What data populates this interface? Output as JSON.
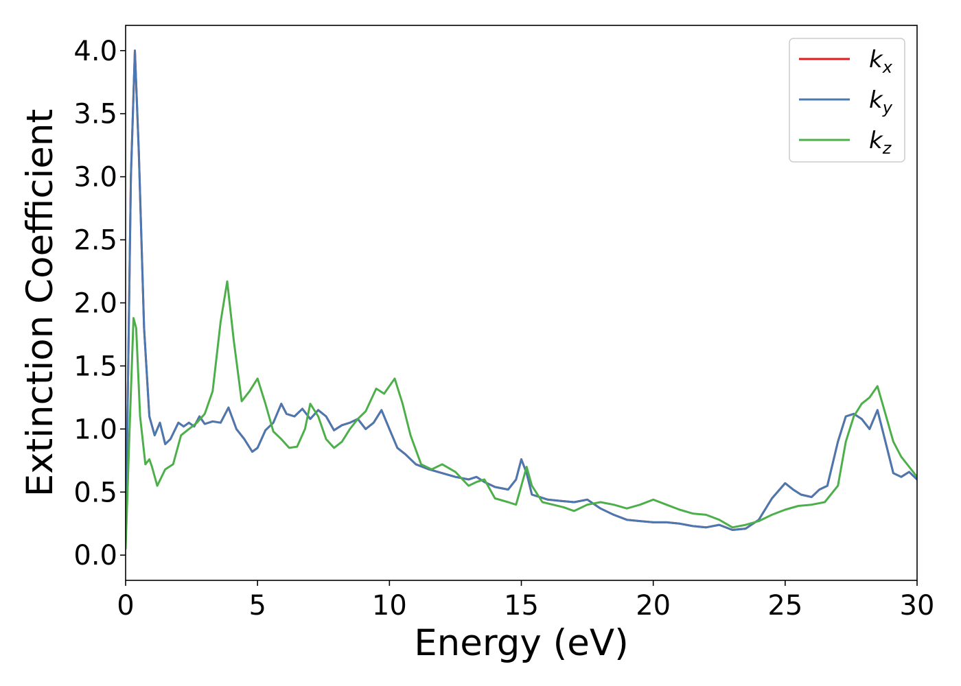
{
  "chart_data": {
    "type": "line",
    "title": "",
    "xlabel": "Energy (eV)",
    "ylabel": "Extinction Coefficient",
    "xlim": [
      0,
      30
    ],
    "ylim": [
      -0.2,
      4.2
    ],
    "xticks": [
      0,
      5,
      10,
      15,
      20,
      25,
      30
    ],
    "xtick_labels": [
      "0",
      "5",
      "10",
      "15",
      "20",
      "25",
      "30"
    ],
    "yticks": [
      0.0,
      0.5,
      1.0,
      1.5,
      2.0,
      2.5,
      3.0,
      3.5,
      4.0
    ],
    "ytick_labels": [
      "0.0",
      "0.5",
      "1.0",
      "1.5",
      "2.0",
      "2.5",
      "3.0",
      "3.5",
      "4.0"
    ],
    "grid": false,
    "legend_position": "top-right",
    "series": [
      {
        "name": "k",
        "subscript": "x",
        "color": "#e41a1c",
        "x": [
          0.0,
          0.1,
          0.2,
          0.35,
          0.5,
          0.7,
          0.9,
          1.1,
          1.3,
          1.5,
          1.7,
          2.0,
          2.2,
          2.4,
          2.6,
          2.8,
          3.0,
          3.3,
          3.6,
          3.9,
          4.2,
          4.5,
          4.8,
          5.0,
          5.3,
          5.6,
          5.9,
          6.1,
          6.4,
          6.7,
          7.0,
          7.3,
          7.6,
          7.9,
          8.2,
          8.5,
          8.8,
          9.1,
          9.4,
          9.7,
          10.0,
          10.3,
          10.6,
          11.0,
          11.5,
          12.0,
          12.5,
          13.0,
          13.3,
          13.6,
          14.0,
          14.5,
          14.8,
          15.0,
          15.2,
          15.4,
          15.7,
          16.0,
          16.5,
          17.0,
          17.5,
          18.0,
          18.5,
          19.0,
          19.5,
          20.0,
          20.5,
          21.0,
          21.5,
          22.0,
          22.5,
          23.0,
          23.5,
          24.0,
          24.5,
          25.0,
          25.3,
          25.6,
          26.0,
          26.3,
          26.6,
          27.0,
          27.3,
          27.6,
          27.9,
          28.2,
          28.5,
          28.8,
          29.1,
          29.4,
          29.7,
          30.0
        ],
        "y": [
          0.1,
          1.5,
          3.0,
          4.0,
          3.2,
          1.8,
          1.1,
          0.95,
          1.05,
          0.88,
          0.92,
          1.05,
          1.02,
          1.05,
          1.02,
          1.1,
          1.04,
          1.06,
          1.05,
          1.17,
          1.0,
          0.92,
          0.82,
          0.85,
          0.99,
          1.05,
          1.2,
          1.12,
          1.1,
          1.16,
          1.08,
          1.15,
          1.1,
          0.99,
          1.03,
          1.05,
          1.08,
          1.0,
          1.05,
          1.15,
          1.0,
          0.85,
          0.8,
          0.72,
          0.68,
          0.65,
          0.62,
          0.6,
          0.62,
          0.58,
          0.54,
          0.52,
          0.6,
          0.76,
          0.65,
          0.48,
          0.46,
          0.44,
          0.43,
          0.42,
          0.44,
          0.37,
          0.32,
          0.28,
          0.27,
          0.26,
          0.26,
          0.25,
          0.23,
          0.22,
          0.24,
          0.2,
          0.21,
          0.28,
          0.45,
          0.57,
          0.52,
          0.48,
          0.46,
          0.52,
          0.55,
          0.9,
          1.1,
          1.12,
          1.08,
          1.0,
          1.15,
          0.9,
          0.65,
          0.62,
          0.66,
          0.6
        ]
      },
      {
        "name": "k",
        "subscript": "y",
        "color": "#4a78b0",
        "x": [
          0.0,
          0.1,
          0.2,
          0.35,
          0.5,
          0.7,
          0.9,
          1.1,
          1.3,
          1.5,
          1.7,
          2.0,
          2.2,
          2.4,
          2.6,
          2.8,
          3.0,
          3.3,
          3.6,
          3.9,
          4.2,
          4.5,
          4.8,
          5.0,
          5.3,
          5.6,
          5.9,
          6.1,
          6.4,
          6.7,
          7.0,
          7.3,
          7.6,
          7.9,
          8.2,
          8.5,
          8.8,
          9.1,
          9.4,
          9.7,
          10.0,
          10.3,
          10.6,
          11.0,
          11.5,
          12.0,
          12.5,
          13.0,
          13.3,
          13.6,
          14.0,
          14.5,
          14.8,
          15.0,
          15.2,
          15.4,
          15.7,
          16.0,
          16.5,
          17.0,
          17.5,
          18.0,
          18.5,
          19.0,
          19.5,
          20.0,
          20.5,
          21.0,
          21.5,
          22.0,
          22.5,
          23.0,
          23.5,
          24.0,
          24.5,
          25.0,
          25.3,
          25.6,
          26.0,
          26.3,
          26.6,
          27.0,
          27.3,
          27.6,
          27.9,
          28.2,
          28.5,
          28.8,
          29.1,
          29.4,
          29.7,
          30.0
        ],
        "y": [
          0.1,
          1.5,
          3.0,
          4.0,
          3.2,
          1.8,
          1.1,
          0.95,
          1.05,
          0.88,
          0.92,
          1.05,
          1.02,
          1.05,
          1.02,
          1.1,
          1.04,
          1.06,
          1.05,
          1.17,
          1.0,
          0.92,
          0.82,
          0.85,
          0.99,
          1.05,
          1.2,
          1.12,
          1.1,
          1.16,
          1.08,
          1.15,
          1.1,
          0.99,
          1.03,
          1.05,
          1.08,
          1.0,
          1.05,
          1.15,
          1.0,
          0.85,
          0.8,
          0.72,
          0.68,
          0.65,
          0.62,
          0.6,
          0.62,
          0.58,
          0.54,
          0.52,
          0.6,
          0.76,
          0.65,
          0.48,
          0.46,
          0.44,
          0.43,
          0.42,
          0.44,
          0.37,
          0.32,
          0.28,
          0.27,
          0.26,
          0.26,
          0.25,
          0.23,
          0.22,
          0.24,
          0.2,
          0.21,
          0.28,
          0.45,
          0.57,
          0.52,
          0.48,
          0.46,
          0.52,
          0.55,
          0.9,
          1.1,
          1.12,
          1.08,
          1.0,
          1.15,
          0.9,
          0.65,
          0.62,
          0.66,
          0.6
        ]
      },
      {
        "name": "k",
        "subscript": "z",
        "color": "#4daf4a",
        "x": [
          0.0,
          0.15,
          0.3,
          0.4,
          0.55,
          0.75,
          0.9,
          1.0,
          1.2,
          1.5,
          1.8,
          2.1,
          2.4,
          2.7,
          3.0,
          3.3,
          3.6,
          3.85,
          4.1,
          4.4,
          4.7,
          5.0,
          5.3,
          5.6,
          5.9,
          6.2,
          6.5,
          6.8,
          7.0,
          7.3,
          7.6,
          7.9,
          8.2,
          8.5,
          8.8,
          9.1,
          9.5,
          9.8,
          10.2,
          10.5,
          10.8,
          11.2,
          11.6,
          12.0,
          12.5,
          13.0,
          13.3,
          13.6,
          14.0,
          14.5,
          14.8,
          15.0,
          15.2,
          15.4,
          15.8,
          16.2,
          16.6,
          17.0,
          17.5,
          18.0,
          18.5,
          19.0,
          19.5,
          20.0,
          20.5,
          21.0,
          21.5,
          22.0,
          22.5,
          23.0,
          23.5,
          24.0,
          24.5,
          25.0,
          25.5,
          26.0,
          26.5,
          27.0,
          27.3,
          27.6,
          27.9,
          28.2,
          28.5,
          28.8,
          29.1,
          29.4,
          29.7,
          30.0
        ],
        "y": [
          0.05,
          1.0,
          1.88,
          1.8,
          1.1,
          0.72,
          0.76,
          0.7,
          0.55,
          0.68,
          0.72,
          0.95,
          1.0,
          1.05,
          1.12,
          1.3,
          1.85,
          2.17,
          1.7,
          1.22,
          1.3,
          1.4,
          1.2,
          0.98,
          0.92,
          0.85,
          0.86,
          1.0,
          1.2,
          1.1,
          0.92,
          0.85,
          0.9,
          1.0,
          1.08,
          1.14,
          1.32,
          1.28,
          1.4,
          1.2,
          0.95,
          0.72,
          0.68,
          0.72,
          0.66,
          0.55,
          0.58,
          0.6,
          0.45,
          0.42,
          0.4,
          0.55,
          0.7,
          0.55,
          0.42,
          0.4,
          0.38,
          0.35,
          0.4,
          0.42,
          0.4,
          0.37,
          0.4,
          0.44,
          0.4,
          0.36,
          0.33,
          0.32,
          0.28,
          0.22,
          0.24,
          0.27,
          0.32,
          0.36,
          0.39,
          0.4,
          0.42,
          0.55,
          0.9,
          1.1,
          1.2,
          1.25,
          1.34,
          1.12,
          0.9,
          0.78,
          0.7,
          0.62
        ]
      }
    ]
  }
}
